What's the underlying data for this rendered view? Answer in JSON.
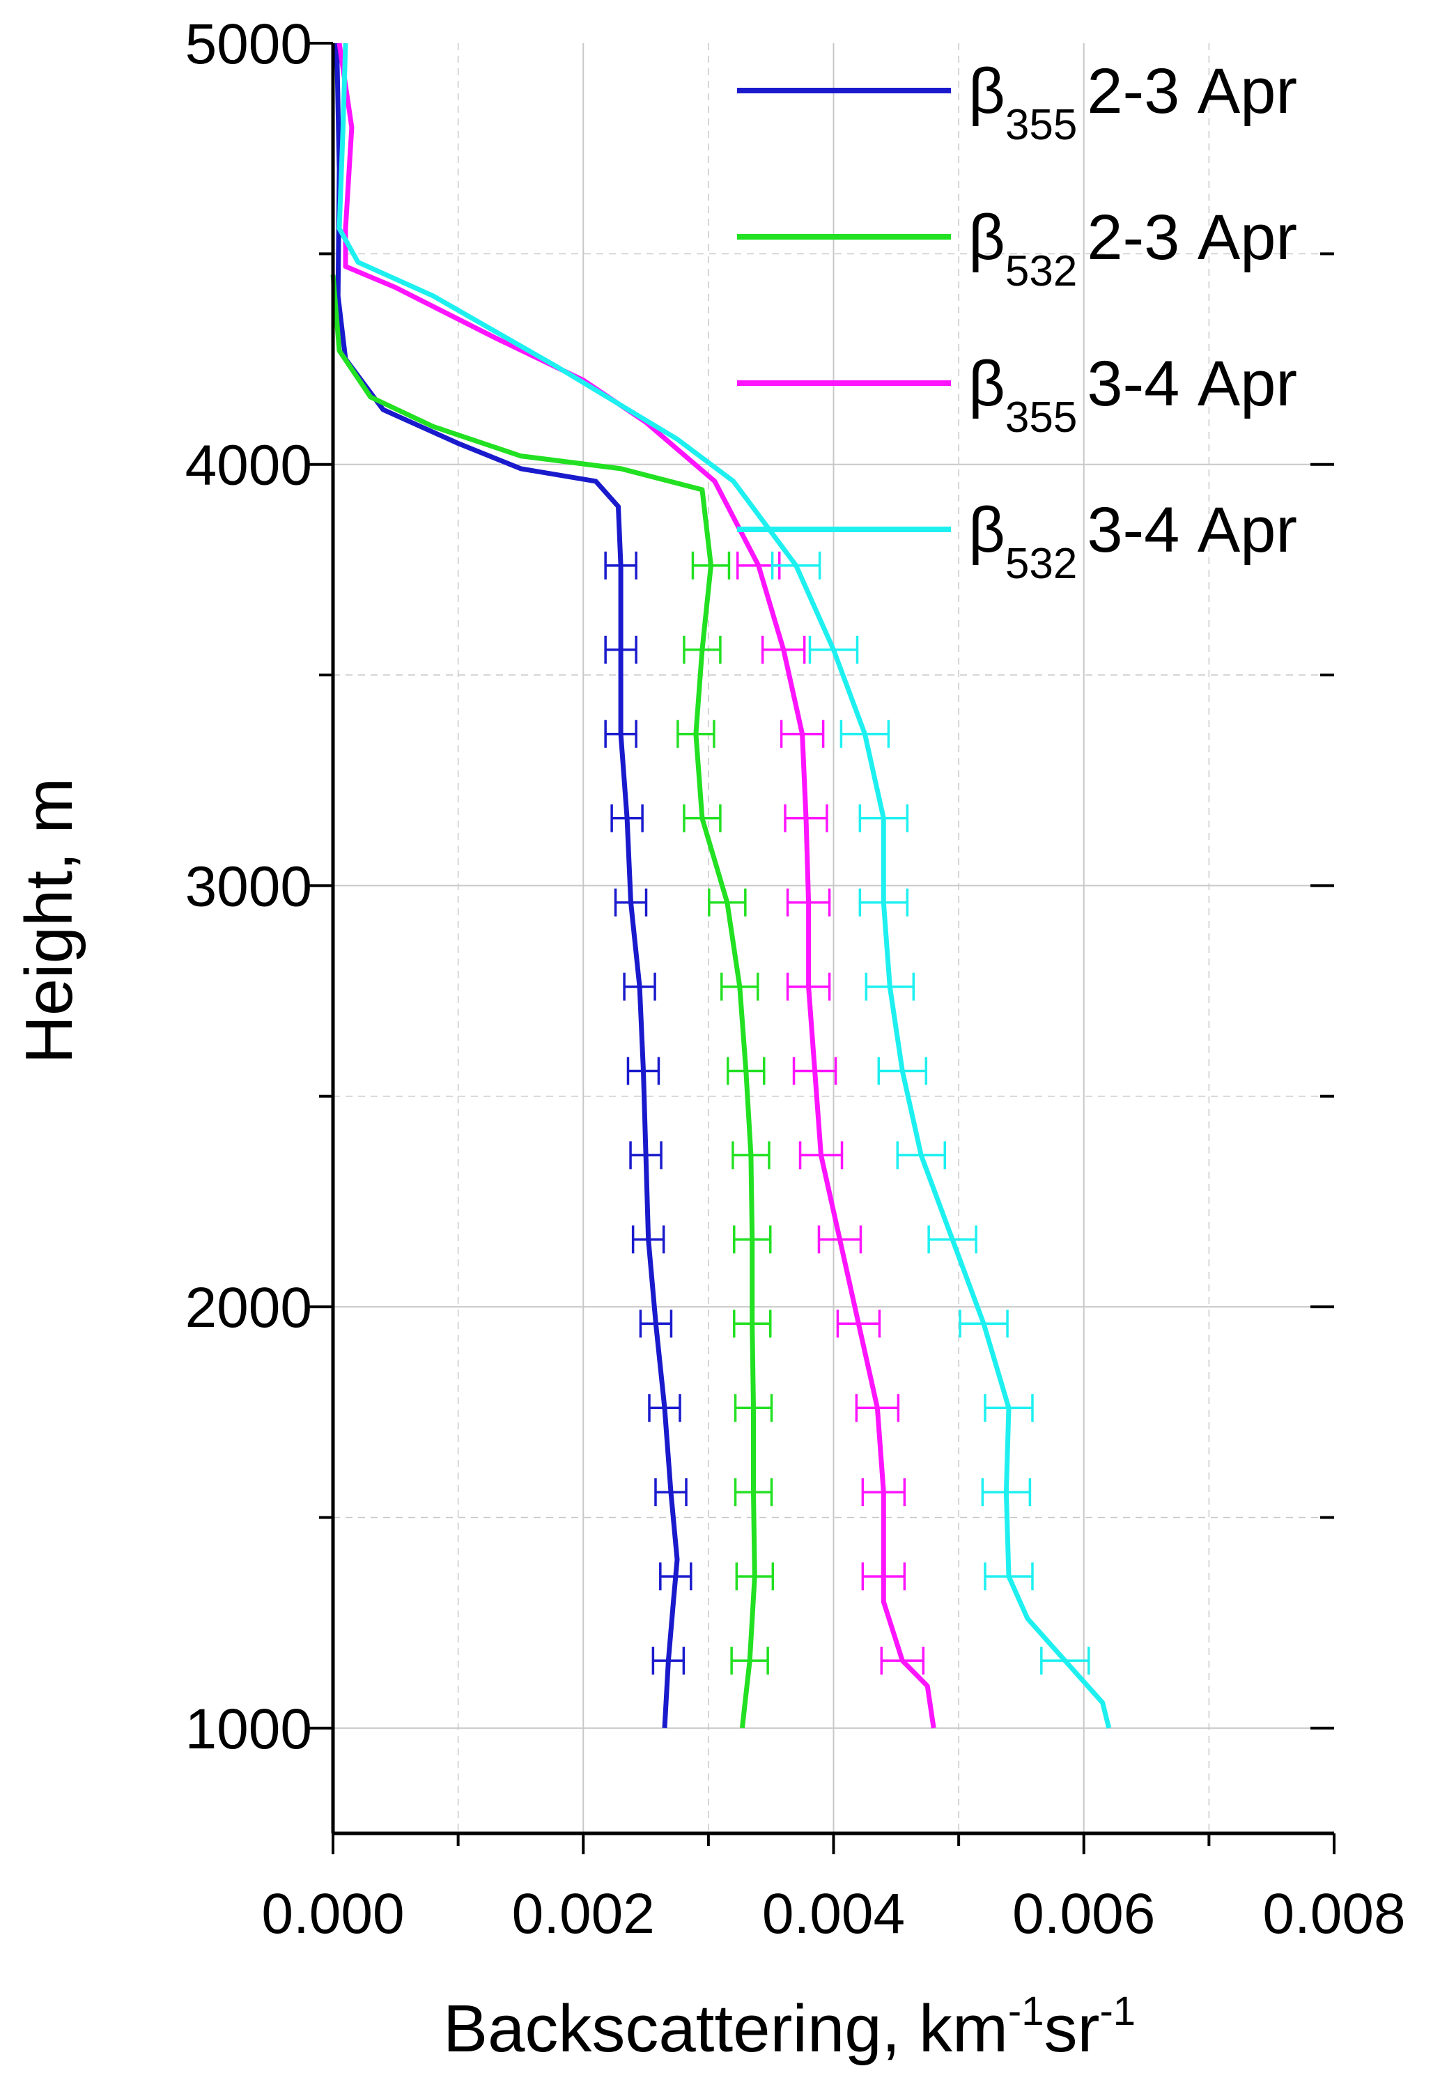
{
  "chart_data": {
    "type": "line",
    "xlabel": "Backscattering, km",
    "xlabel_sup1": "-1",
    "xlabel_mid": "sr",
    "xlabel_sup2": "-1",
    "ylabel": "Height, m",
    "xlim": [
      0,
      0.008
    ],
    "ylim": [
      750,
      5000
    ],
    "x_ticks": [
      "0.000",
      "0.002",
      "0.004",
      "0.006",
      "0.008"
    ],
    "x_tick_values": [
      0,
      0.002,
      0.004,
      0.006,
      0.008
    ],
    "y_ticks": [
      "1000",
      "2000",
      "3000",
      "4000",
      "5000"
    ],
    "y_tick_values": [
      1000,
      2000,
      3000,
      4000,
      5000
    ],
    "grid": true,
    "legend_position": "top-right",
    "error_bar_heights": [
      1160,
      1360,
      1560,
      1760,
      1960,
      2160,
      2360,
      2560,
      2760,
      2960,
      3160,
      3360,
      3560,
      3760
    ],
    "series": [
      {
        "name": "β355 2-3 Apr",
        "symbol": "β",
        "sub": "355",
        "period": "2-3 Apr",
        "color": "#1a1acd",
        "points": [
          [
            0.00265,
            1000
          ],
          [
            0.00268,
            1160
          ],
          [
            0.00272,
            1300
          ],
          [
            0.00275,
            1400
          ],
          [
            0.0027,
            1560
          ],
          [
            0.00265,
            1760
          ],
          [
            0.00258,
            1960
          ],
          [
            0.00252,
            2160
          ],
          [
            0.0025,
            2360
          ],
          [
            0.00248,
            2560
          ],
          [
            0.00245,
            2760
          ],
          [
            0.00238,
            2960
          ],
          [
            0.00235,
            3160
          ],
          [
            0.0023,
            3360
          ],
          [
            0.0023,
            3560
          ],
          [
            0.0023,
            3760
          ],
          [
            0.00228,
            3900
          ],
          [
            0.0021,
            3960
          ],
          [
            0.0015,
            3990
          ],
          [
            0.001,
            4050
          ],
          [
            0.0004,
            4130
          ],
          [
            0.0001,
            4250
          ],
          [
            4e-05,
            4400
          ],
          [
            5e-05,
            4700
          ],
          [
            3e-05,
            5000
          ]
        ]
      },
      {
        "name": "β532 2-3 Apr",
        "symbol": "β",
        "sub": "532",
        "period": "2-3 Apr",
        "color": "#22e022",
        "points": [
          [
            0.00327,
            1000
          ],
          [
            0.00333,
            1160
          ],
          [
            0.00337,
            1360
          ],
          [
            0.00336,
            1560
          ],
          [
            0.00336,
            1760
          ],
          [
            0.00335,
            1960
          ],
          [
            0.00335,
            2160
          ],
          [
            0.00334,
            2360
          ],
          [
            0.0033,
            2560
          ],
          [
            0.00325,
            2760
          ],
          [
            0.00315,
            2960
          ],
          [
            0.00295,
            3160
          ],
          [
            0.0029,
            3360
          ],
          [
            0.00295,
            3560
          ],
          [
            0.00302,
            3760
          ],
          [
            0.00295,
            3940
          ],
          [
            0.0023,
            3990
          ],
          [
            0.0015,
            4020
          ],
          [
            0.0008,
            4090
          ],
          [
            0.0003,
            4160
          ],
          [
            5e-05,
            4270
          ],
          [
            0.0,
            4450
          ]
        ]
      },
      {
        "name": "β355 3-4 Apr",
        "symbol": "β",
        "sub": "355",
        "period": "3-4 Apr",
        "color": "#ff14ff",
        "points": [
          [
            0.0048,
            1000
          ],
          [
            0.00475,
            1100
          ],
          [
            0.00455,
            1160
          ],
          [
            0.0044,
            1300
          ],
          [
            0.0044,
            1560
          ],
          [
            0.00435,
            1760
          ],
          [
            0.0042,
            1960
          ],
          [
            0.00405,
            2160
          ],
          [
            0.0039,
            2360
          ],
          [
            0.00385,
            2560
          ],
          [
            0.0038,
            2760
          ],
          [
            0.0038,
            2960
          ],
          [
            0.00378,
            3160
          ],
          [
            0.00375,
            3360
          ],
          [
            0.0036,
            3560
          ],
          [
            0.0034,
            3760
          ],
          [
            0.00305,
            3960
          ],
          [
            0.0025,
            4100
          ],
          [
            0.002,
            4200
          ],
          [
            0.0013,
            4300
          ],
          [
            0.0005,
            4420
          ],
          [
            0.0001,
            4470
          ],
          [
            0.0001,
            4560
          ],
          [
            0.00015,
            4800
          ],
          [
            5e-05,
            5000
          ]
        ]
      },
      {
        "name": "β532 3-4 Apr",
        "symbol": "β",
        "sub": "532",
        "period": "3-4 Apr",
        "color": "#1ef0f0",
        "points": [
          [
            0.0062,
            1000
          ],
          [
            0.00615,
            1060
          ],
          [
            0.00585,
            1160
          ],
          [
            0.00555,
            1260
          ],
          [
            0.0054,
            1360
          ],
          [
            0.00538,
            1560
          ],
          [
            0.0054,
            1760
          ],
          [
            0.0052,
            1960
          ],
          [
            0.00495,
            2160
          ],
          [
            0.0047,
            2360
          ],
          [
            0.00455,
            2560
          ],
          [
            0.00445,
            2760
          ],
          [
            0.0044,
            2960
          ],
          [
            0.0044,
            3160
          ],
          [
            0.00425,
            3360
          ],
          [
            0.004,
            3560
          ],
          [
            0.0037,
            3760
          ],
          [
            0.0032,
            3960
          ],
          [
            0.00275,
            4060
          ],
          [
            0.0018,
            4230
          ],
          [
            0.0008,
            4400
          ],
          [
            0.0002,
            4480
          ],
          [
            5e-05,
            4560
          ],
          [
            8e-05,
            4800
          ],
          [
            0.0001,
            5000
          ]
        ]
      }
    ]
  }
}
